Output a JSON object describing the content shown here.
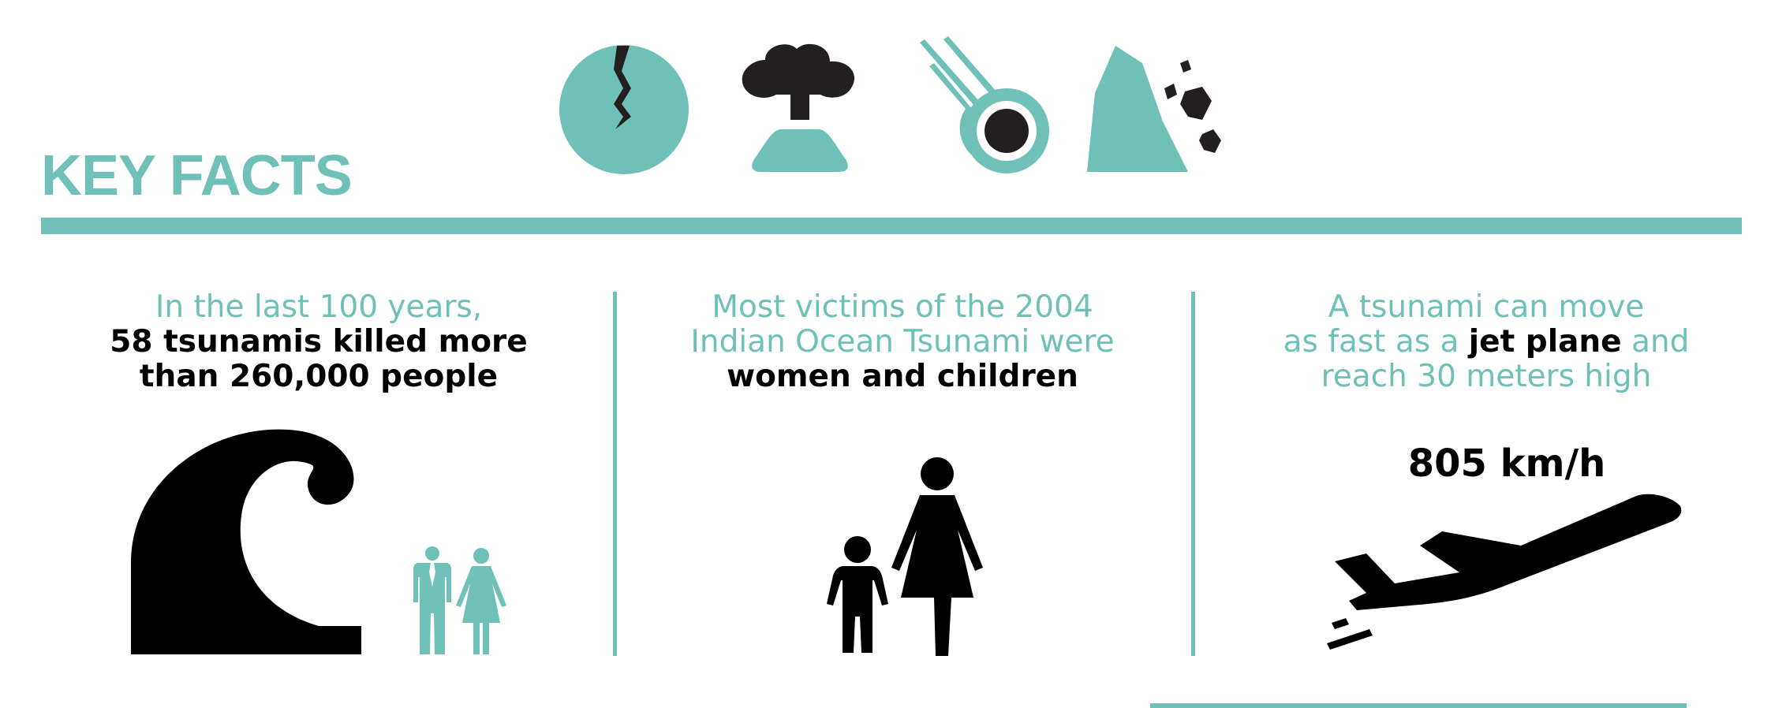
{
  "colors": {
    "accent": "#6fc1b8",
    "dark": "#000000",
    "shape_dark": "#231f20"
  },
  "header": {
    "title": "KEY FACTS"
  },
  "cause_icons": [
    "earthquake-icon",
    "volcano-icon",
    "meteor-icon",
    "landslide-icon"
  ],
  "facts": [
    {
      "line1": "In the last 100 years,",
      "line2": "58 tsunamis killed more",
      "line3": "than 260,000 people",
      "icons": [
        "wave-icon",
        "man-icon",
        "woman-icon"
      ]
    },
    {
      "line1": "Most victims of the 2004",
      "line2": "Indian Ocean Tsunami were",
      "line3": "women and children",
      "icons": [
        "child-icon",
        "woman-icon"
      ]
    },
    {
      "line1": "A tsunami can move",
      "line2_pre": "as fast as a ",
      "line2_bold": "jet plane",
      "line2_post": " and",
      "line3": "reach 30 meters high",
      "speed": "805 km/h",
      "icons": [
        "airplane-icon"
      ]
    }
  ]
}
